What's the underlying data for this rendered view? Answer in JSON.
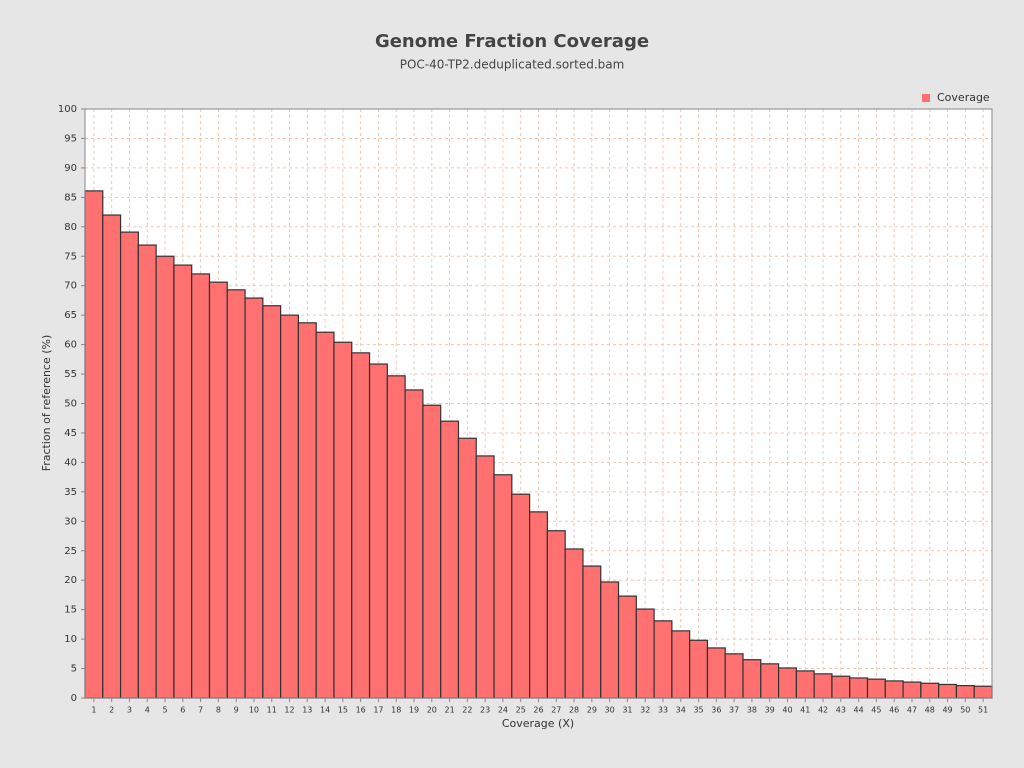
{
  "chart_data": {
    "type": "bar",
    "title": "Genome Fraction Coverage",
    "subtitle": "POC-40-TP2.deduplicated.sorted.bam",
    "x_label": "Coverage (X)",
    "y_label": "Fraction of reference (%)",
    "categories": [
      1,
      2,
      3,
      4,
      5,
      6,
      7,
      8,
      9,
      10,
      11,
      12,
      13,
      14,
      15,
      16,
      17,
      18,
      19,
      20,
      21,
      22,
      23,
      24,
      25,
      26,
      27,
      28,
      29,
      30,
      31,
      32,
      33,
      34,
      35,
      36,
      37,
      38,
      39,
      40,
      41,
      42,
      43,
      44,
      45,
      46,
      47,
      48,
      49,
      50,
      51
    ],
    "series": [
      {
        "name": "Coverage",
        "color": "#ff7070",
        "values": [
          86.1,
          82.0,
          79.1,
          76.9,
          75.0,
          73.5,
          72.0,
          70.6,
          69.3,
          67.9,
          66.6,
          65.0,
          63.7,
          62.1,
          60.4,
          58.6,
          56.7,
          54.7,
          52.3,
          49.7,
          47.0,
          44.1,
          41.1,
          37.9,
          34.6,
          31.6,
          28.4,
          25.3,
          22.4,
          19.7,
          17.3,
          15.1,
          13.1,
          11.4,
          9.8,
          8.5,
          7.5,
          6.5,
          5.8,
          5.1,
          4.6,
          4.1,
          3.7,
          3.4,
          3.2,
          2.9,
          2.7,
          2.5,
          2.3,
          2.1,
          2.0
        ]
      }
    ],
    "ylim": [
      0,
      100
    ],
    "yticks": [
      0,
      5,
      10,
      15,
      20,
      25,
      30,
      35,
      40,
      45,
      50,
      55,
      60,
      65,
      70,
      75,
      80,
      85,
      90,
      95,
      100
    ],
    "grid": true,
    "legend": "top-right"
  }
}
